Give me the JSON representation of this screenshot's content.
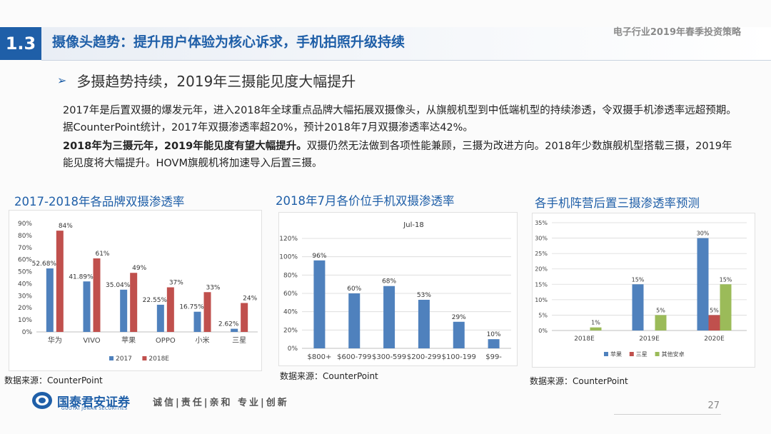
{
  "header": {
    "section_no": "1.3",
    "title": "摄像头趋势：提升用户体验为核心诉求，手机拍照升级持续",
    "report": "电子行业2019年春季投资策略"
  },
  "subheading": "多摄趋势持续，2019年三摄能见度大幅提升",
  "paragraph1": "2017年是后置双摄的爆发元年，进入2018年全球重点品牌大幅拓展双摄像头，从旗舰机型到中低端机型的持续渗透，令双摄手机渗透率远超预期。据CounterPoint统计，2017年双摄渗透率超20%，预计2018年7月双摄渗透率达42%。",
  "paragraph2_bold": "2018年为三摄元年，2019年能见度有望大幅提升。",
  "paragraph2_rest": "双摄仍然无法做到各项性能兼顾，三摄为改进方向。2018年少数旗舰机型搭载三摄，2019年能见度将大幅提升。HOVM旗舰机将加速导入后置三摄。",
  "colors": {
    "blue": "#4f81bd",
    "red": "#c0504d",
    "green": "#9bbb59",
    "accent": "#1f5fa8"
  },
  "chart_data": [
    {
      "type": "bar",
      "title": "2017-2018年各品牌双摄渗透率",
      "categories": [
        "华为",
        "VIVO",
        "苹果",
        "OPPO",
        "小米",
        "三星"
      ],
      "series": [
        {
          "name": "2017",
          "values": [
            52.68,
            41.89,
            35.04,
            22.55,
            16.75,
            2.62
          ],
          "labels": [
            "52.68%",
            "41.89%",
            "35.04%",
            "22.55%",
            "16.75%",
            "2.62%"
          ]
        },
        {
          "name": "2018E",
          "values": [
            84,
            61,
            49,
            37,
            33,
            24
          ],
          "labels": [
            "84%",
            "61%",
            "49%",
            "37%",
            "33%",
            "24%"
          ]
        }
      ],
      "yticks": [
        "0%",
        "10%",
        "20%",
        "30%",
        "40%",
        "50%",
        "60%",
        "70%",
        "80%",
        "90%"
      ],
      "ylim": [
        0,
        90
      ],
      "legend_position": "bottom",
      "source": "数据来源：CounterPoint"
    },
    {
      "type": "bar",
      "title": "2018年7月各价位手机双摄渗透率",
      "inner_title": "Jul-18",
      "categories": [
        "$800+",
        "$600-799",
        "$300-599",
        "$200-299",
        "$100-199",
        "$99-"
      ],
      "series": [
        {
          "values": [
            96,
            60,
            68,
            53,
            29,
            10
          ],
          "labels": [
            "96%",
            "60%",
            "68%",
            "53%",
            "29%",
            "10%"
          ]
        }
      ],
      "yticks": [
        "0%",
        "20%",
        "40%",
        "60%",
        "80%",
        "100%",
        "120%"
      ],
      "ylim": [
        0,
        120
      ],
      "source": "数据来源：CounterPoint"
    },
    {
      "type": "bar",
      "title": "各手机阵营后置三摄渗透率预测",
      "categories": [
        "2018E",
        "2019E",
        "2020E"
      ],
      "series": [
        {
          "name": "苹果",
          "values": [
            0,
            15,
            30
          ],
          "labels": [
            "",
            "15%",
            "30%"
          ]
        },
        {
          "name": "三星",
          "values": [
            0,
            0,
            5
          ],
          "labels": [
            "",
            "",
            "5%"
          ]
        },
        {
          "name": "其他安卓",
          "values": [
            1,
            5,
            15
          ],
          "labels": [
            "1%",
            "5%",
            "15%"
          ]
        }
      ],
      "yticks": [
        "0%",
        "5%",
        "10%",
        "15%",
        "20%",
        "25%",
        "30%",
        "35%"
      ],
      "ylim": [
        0,
        35
      ],
      "legend_position": "bottom",
      "source": "数据来源：CounterPoint"
    }
  ],
  "footer": {
    "company": "国泰君安证券",
    "company_en": "GUOTAI JUNAN SECURITIES",
    "motto": "诚信|责任|亲和 专业|创新",
    "page": "27"
  }
}
